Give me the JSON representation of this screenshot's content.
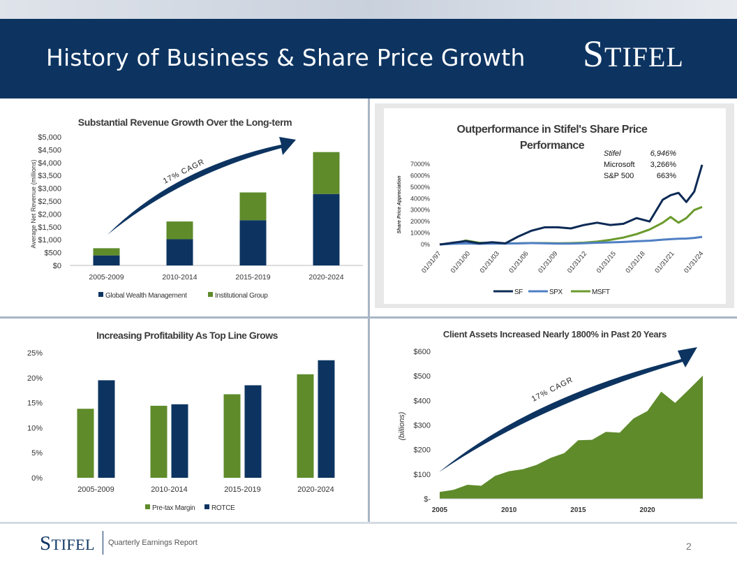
{
  "header": {
    "title": "History of Business & Share Price Growth",
    "logo_big": "S",
    "logo_small": "TIFEL"
  },
  "footer": {
    "logo_big": "S",
    "logo_small": "TIFEL",
    "subtitle": "Quarterly Earnings Report",
    "page": "2"
  },
  "colors": {
    "navy": "#0d3461",
    "green": "#5f8b2b",
    "lightblue": "#4f7fc4",
    "sfline": "#0d2a55",
    "msftline": "#6a9a2c"
  },
  "chart_data": [
    {
      "type": "bar",
      "stacked": true,
      "title": "Substantial Revenue Growth Over the Long-term",
      "ylabel": "Average Net Revenue (millions)",
      "categories": [
        "2005-2009",
        "2010-2014",
        "2015-2019",
        "2020-2024"
      ],
      "yticks": [
        "$5,000",
        "$4,500",
        "$4,000",
        "$3,500",
        "$3,000",
        "$2,500",
        "$2,000",
        "$1,500",
        "$1,000",
        "$500",
        "$0"
      ],
      "ylim": [
        0,
        5000
      ],
      "series": [
        {
          "name": "Global Wealth Management",
          "values": [
            390,
            1020,
            1760,
            2780
          ]
        },
        {
          "name": "Institutional Group",
          "values": [
            280,
            690,
            1080,
            1630
          ]
        }
      ],
      "annotation": "17% CAGR"
    },
    {
      "type": "line",
      "title": "Outperformance in Stifel's Share Price Performance",
      "title_lines": [
        "Outperformance in Stifel's Share Price",
        "Performance"
      ],
      "ylabel": "Share Price Appreciation",
      "yticks": [
        "7000%",
        "6000%",
        "5000%",
        "4000%",
        "3000%",
        "2000%",
        "1000%",
        "0%"
      ],
      "ylim": [
        0,
        7000
      ],
      "xticks": [
        "01/31/97",
        "01/31/00",
        "01/31/03",
        "01/31/06",
        "01/31/09",
        "01/31/12",
        "01/31/15",
        "01/31/18",
        "01/31/21",
        "01/31/24"
      ],
      "x": [
        0,
        0.05,
        0.1,
        0.15,
        0.2,
        0.25,
        0.3,
        0.35,
        0.4,
        0.45,
        0.5,
        0.55,
        0.6,
        0.65,
        0.7,
        0.75,
        0.8,
        0.85,
        0.88,
        0.91,
        0.94,
        0.97,
        1.0
      ],
      "series": [
        {
          "name": "SF",
          "values": [
            0,
            150,
            300,
            100,
            200,
            100,
            700,
            1200,
            1500,
            1500,
            1400,
            1700,
            1900,
            1700,
            1800,
            2300,
            2000,
            3900,
            4300,
            4500,
            3700,
            4600,
            6946
          ]
        },
        {
          "name": "SPX",
          "values": [
            0,
            60,
            90,
            60,
            80,
            70,
            100,
            120,
            100,
            80,
            80,
            110,
            150,
            180,
            220,
            280,
            330,
            420,
            460,
            500,
            520,
            570,
            663
          ]
        },
        {
          "name": "MSFT",
          "values": [
            0,
            80,
            350,
            150,
            120,
            100,
            100,
            130,
            120,
            110,
            120,
            160,
            250,
            400,
            600,
            900,
            1300,
            1900,
            2400,
            1900,
            2300,
            3000,
            3266
          ]
        }
      ],
      "legend_box": {
        "rows": [
          {
            "name": "Stifel",
            "value": "6,946%"
          },
          {
            "name": "Microsoft",
            "value": "3,266%"
          },
          {
            "name": "S&P 500",
            "value": "663%"
          }
        ]
      }
    },
    {
      "type": "bar",
      "title": "Increasing Profitability As Top Line Grows",
      "categories": [
        "2005-2009",
        "2010-2014",
        "2015-2019",
        "2020-2024"
      ],
      "yticks": [
        "25%",
        "20%",
        "15%",
        "10%",
        "5%",
        "0%"
      ],
      "ylim": [
        0,
        25
      ],
      "series": [
        {
          "name": "Pre-tax Margin",
          "values": [
            13.8,
            14.4,
            16.7,
            20.7
          ]
        },
        {
          "name": "ROTCE",
          "values": [
            19.5,
            14.7,
            18.5,
            23.5
          ]
        }
      ]
    },
    {
      "type": "area",
      "title": "Client Assets Increased Nearly 1800% in Past 20 Years",
      "ylabel": "(billions)",
      "yticks": [
        "$600",
        "$500",
        "$400",
        "$300",
        "$200",
        "$100",
        "$-"
      ],
      "ylim": [
        0,
        600
      ],
      "xticks": [
        "2005",
        "2010",
        "2015",
        "2020"
      ],
      "x": [
        2005,
        2006,
        2007,
        2008,
        2009,
        2010,
        2011,
        2012,
        2013,
        2014,
        2015,
        2016,
        2017,
        2018,
        2019,
        2020,
        2021,
        2022,
        2023,
        2024
      ],
      "values": [
        28,
        36,
        57,
        53,
        93,
        112,
        120,
        138,
        166,
        186,
        238,
        240,
        272,
        269,
        327,
        357,
        436,
        390,
        445,
        501
      ],
      "annotation": "17% CAGR"
    }
  ]
}
